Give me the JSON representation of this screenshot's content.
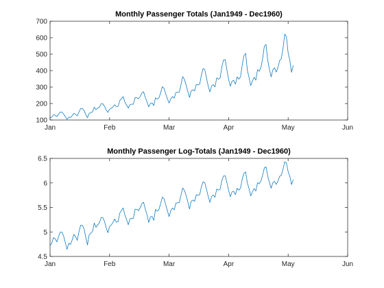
{
  "chart_data": [
    {
      "type": "line",
      "title": "Monthly Passenger Totals (Jan1949 - Dec1960)",
      "xlabel": "",
      "ylabel": "",
      "x_tick_labels": [
        "Jan",
        "Feb",
        "Mar",
        "Apr",
        "May",
        "Jun"
      ],
      "x_tick_values": [
        0,
        1,
        2,
        3,
        4,
        5
      ],
      "xlim": [
        0,
        5
      ],
      "ylim": [
        100,
        700
      ],
      "y_ticks": [
        100,
        200,
        300,
        400,
        500,
        600,
        700
      ],
      "y_tick_labels": [
        "100",
        "200",
        "300",
        "400",
        "500",
        "600",
        "700"
      ],
      "grid": false,
      "color": "#0072bd",
      "series": [
        {
          "x_start": 0,
          "x_step": 0.028571428571,
          "values": [
            112,
            118,
            132,
            129,
            121,
            135,
            148,
            148,
            136,
            119,
            104,
            118,
            115,
            126,
            141,
            135,
            125,
            149,
            170,
            170,
            158,
            133,
            114,
            140,
            145,
            150,
            178,
            163,
            172,
            178,
            199,
            199,
            184,
            162,
            146,
            166,
            171,
            180,
            193,
            181,
            183,
            218,
            230,
            242,
            209,
            191,
            172,
            194,
            196,
            196,
            236,
            235,
            229,
            243,
            264,
            272,
            237,
            211,
            180,
            201,
            204,
            188,
            235,
            227,
            234,
            264,
            302,
            293,
            259,
            229,
            203,
            229,
            242,
            233,
            267,
            269,
            270,
            315,
            364,
            347,
            312,
            274,
            237,
            278,
            284,
            277,
            317,
            313,
            318,
            374,
            413,
            405,
            355,
            306,
            271,
            306,
            315,
            301,
            356,
            348,
            355,
            422,
            465,
            467,
            404,
            347,
            305,
            336,
            340,
            318,
            362,
            348,
            363,
            435,
            491,
            505,
            404,
            359,
            310,
            337,
            360,
            342,
            406,
            396,
            420,
            472,
            548,
            559,
            463,
            407,
            362,
            405,
            417,
            391,
            419,
            461,
            472,
            535,
            622,
            606,
            508,
            461,
            390,
            432
          ]
        }
      ]
    },
    {
      "type": "line",
      "title": "Monthly Passenger Log-Totals (Jan1949 - Dec1960)",
      "xlabel": "",
      "ylabel": "",
      "x_tick_labels": [
        "Jan",
        "Feb",
        "Mar",
        "Apr",
        "May",
        "Jun"
      ],
      "x_tick_values": [
        0,
        1,
        2,
        3,
        4,
        5
      ],
      "xlim": [
        0,
        5
      ],
      "ylim": [
        4.5,
        6.5
      ],
      "y_ticks": [
        4.5,
        5,
        5.5,
        6,
        6.5
      ],
      "y_tick_labels": [
        "4.5",
        "5",
        "5.5",
        "6",
        "6.5"
      ],
      "grid": false,
      "color": "#0072bd",
      "series": [
        {
          "x_start": 0,
          "x_step": 0.028571428571,
          "values": [
            4.718,
            4.771,
            4.883,
            4.86,
            4.796,
            4.905,
            4.997,
            4.997,
            4.913,
            4.779,
            4.644,
            4.771,
            4.745,
            4.836,
            4.949,
            4.905,
            4.828,
            5.004,
            5.136,
            5.136,
            5.063,
            4.89,
            4.736,
            4.942,
            4.977,
            5.011,
            5.182,
            5.094,
            5.147,
            5.182,
            5.293,
            5.293,
            5.215,
            5.088,
            4.984,
            5.112,
            5.142,
            5.193,
            5.263,
            5.198,
            5.209,
            5.384,
            5.438,
            5.489,
            5.342,
            5.252,
            5.147,
            5.268,
            5.278,
            5.278,
            5.464,
            5.46,
            5.434,
            5.493,
            5.576,
            5.606,
            5.468,
            5.352,
            5.193,
            5.303,
            5.318,
            5.236,
            5.46,
            5.425,
            5.455,
            5.576,
            5.71,
            5.68,
            5.557,
            5.434,
            5.313,
            5.434,
            5.489,
            5.451,
            5.587,
            5.595,
            5.598,
            5.753,
            5.897,
            5.849,
            5.743,
            5.613,
            5.468,
            5.628,
            5.649,
            5.624,
            5.759,
            5.746,
            5.762,
            5.924,
            6.023,
            6.004,
            5.872,
            5.724,
            5.602,
            5.724,
            5.753,
            5.707,
            5.875,
            5.852,
            5.872,
            6.045,
            6.142,
            6.146,
            6.001,
            5.849,
            5.72,
            5.817,
            5.829,
            5.762,
            5.892,
            5.852,
            5.894,
            6.075,
            6.196,
            6.225,
            6.001,
            5.883,
            5.736,
            5.82,
            5.886,
            5.835,
            6.006,
            5.981,
            6.04,
            6.157,
            6.306,
            6.326,
            6.138,
            6.009,
            5.892,
            6.004,
            6.033,
            5.969,
            6.038,
            6.133,
            6.157,
            6.282,
            6.433,
            6.407,
            6.23,
            6.133,
            5.966,
            6.068
          ]
        }
      ]
    }
  ]
}
